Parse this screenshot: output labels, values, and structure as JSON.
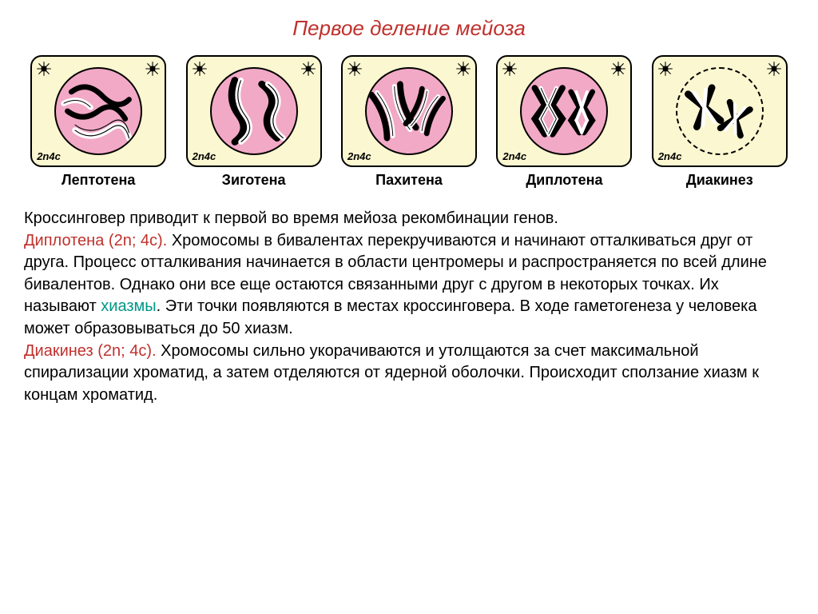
{
  "title": {
    "text": "Первое деление мейоза",
    "color": "#c0302c",
    "fontsize": 26,
    "font_style": "italic"
  },
  "stages": [
    {
      "name": "Лептотена",
      "ploidy": "2n4c",
      "membrane_dashed": false
    },
    {
      "name": "Зиготена",
      "ploidy": "2n4c",
      "membrane_dashed": false
    },
    {
      "name": "Пахитена",
      "ploidy": "2n4c",
      "membrane_dashed": false
    },
    {
      "name": "Диплотена",
      "ploidy": "2n4c",
      "membrane_dashed": false
    },
    {
      "name": "Диакинез",
      "ploidy": "2n4c",
      "membrane_dashed": true
    }
  ],
  "cell_style": {
    "frame_bg": "#fbf7d0",
    "frame_border": "#000000",
    "frame_radius": 14,
    "membrane_bg": "#f2a9c6",
    "membrane_border": "#000000",
    "chromosome_dark": "#000000",
    "chromosome_light": "#ffffff",
    "chromosome_outline": "#000000",
    "centriole_color": "#000000"
  },
  "body": {
    "color_plain": "#000000",
    "color_red": "#c0302c",
    "color_teal": "#009688",
    "fontsize": 20,
    "line_height": 1.38,
    "runs": [
      {
        "text": "Кроссинговер приводит к первой во время мейоза рекомбинации генов.\n",
        "color": "plain"
      },
      {
        "text": "Диплотена (2n; 4c). ",
        "color": "red"
      },
      {
        "text": "Хромосомы в бивалентах перекручиваются и начинают отталкиваться друг от друга. Процесс отталкивания начинается в области центромеры и распространяется по всей длине бивалентов. Однако они все еще остаются связанными друг с другом в некоторых точках. Их называют ",
        "color": "plain"
      },
      {
        "text": "хиазмы",
        "color": "teal"
      },
      {
        "text": ". Эти точки появляются в местах кроссинговера. В ходе гаметогенеза у человека может образовываться до 50 хиазм.\n",
        "color": "plain"
      },
      {
        "text": "Диакинез (2n; 4c). ",
        "color": "red"
      },
      {
        "text": "Хромосомы сильно укорачиваются и утолщаются за счет максимальной спирализации хроматид, а затем отделяются от ядерной оболочки. Происходит сползание хиазм к концам хроматид.",
        "color": "plain"
      }
    ]
  }
}
